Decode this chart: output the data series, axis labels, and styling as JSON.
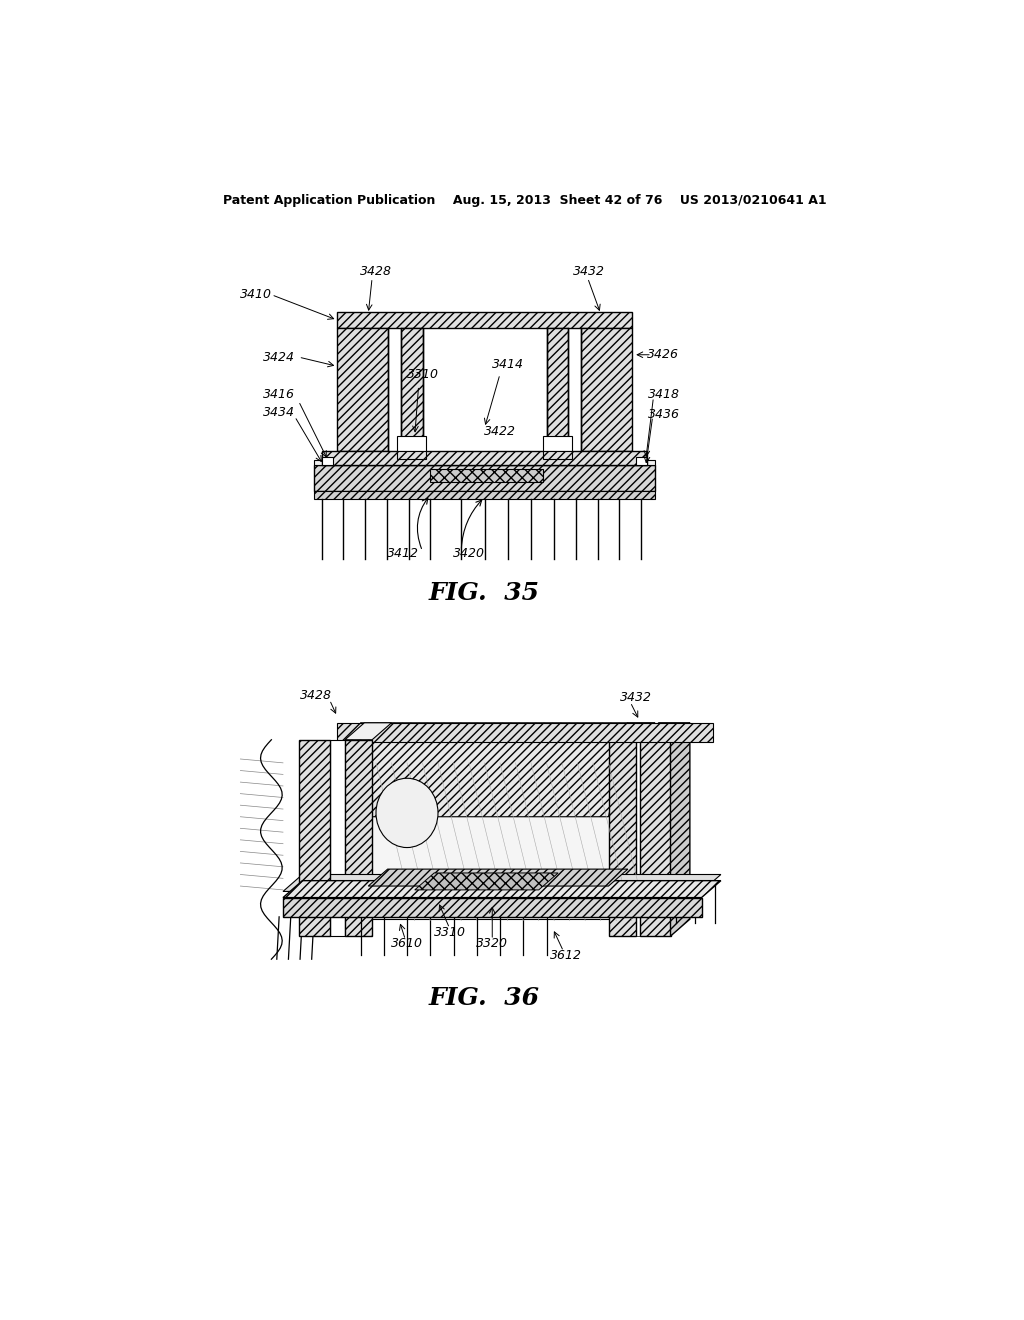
{
  "background_color": "#ffffff",
  "header_text": "Patent Application Publication    Aug. 15, 2013  Sheet 42 of 76    US 2013/0210641 A1",
  "fig35_title": "FIG.  35",
  "fig36_title": "FIG.  36"
}
